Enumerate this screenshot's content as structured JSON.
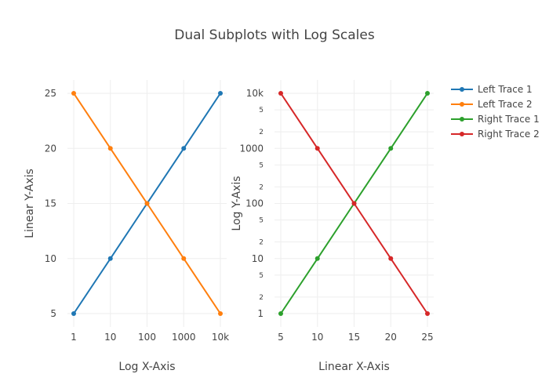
{
  "chart_data": {
    "title": "Dual Subplots with Log Scales",
    "legend_position": "top-right",
    "grid": true,
    "legend": [
      {
        "name": "Left Trace 1",
        "color": "#1f77b4"
      },
      {
        "name": "Left Trace 2",
        "color": "#ff7f0e"
      },
      {
        "name": "Right Trace 1",
        "color": "#2ca02c"
      },
      {
        "name": "Right Trace 2",
        "color": "#d62728"
      }
    ],
    "subplots": [
      {
        "type": "line",
        "xlabel": "Log X-Axis",
        "ylabel": "Linear Y-Axis",
        "xscale": "log",
        "yscale": "linear",
        "xlim": [
          1,
          10000
        ],
        "ylim": [
          5,
          25
        ],
        "xticks": [
          {
            "value": 1,
            "label": "1"
          },
          {
            "value": 10,
            "label": "10"
          },
          {
            "value": 100,
            "label": "100"
          },
          {
            "value": 1000,
            "label": "1000"
          },
          {
            "value": 10000,
            "label": "10k"
          }
        ],
        "yticks": [
          {
            "value": 5,
            "label": "5"
          },
          {
            "value": 10,
            "label": "10"
          },
          {
            "value": 15,
            "label": "15"
          },
          {
            "value": 20,
            "label": "20"
          },
          {
            "value": 25,
            "label": "25"
          }
        ],
        "series": [
          {
            "name": "Left Trace 1",
            "color": "#1f77b4",
            "x": [
              1,
              10,
              100,
              1000,
              10000
            ],
            "y": [
              5,
              10,
              15,
              20,
              25
            ]
          },
          {
            "name": "Left Trace 2",
            "color": "#ff7f0e",
            "x": [
              1,
              10,
              100,
              1000,
              10000
            ],
            "y": [
              25,
              20,
              15,
              10,
              5
            ]
          }
        ]
      },
      {
        "type": "line",
        "xlabel": "Linear X-Axis",
        "ylabel": "Log Y-Axis",
        "xscale": "linear",
        "yscale": "log",
        "xlim": [
          5,
          25
        ],
        "ylim": [
          1,
          10000
        ],
        "xticks": [
          {
            "value": 5,
            "label": "5"
          },
          {
            "value": 10,
            "label": "10"
          },
          {
            "value": 15,
            "label": "15"
          },
          {
            "value": 20,
            "label": "20"
          },
          {
            "value": 25,
            "label": "25"
          }
        ],
        "yticks": [
          {
            "value": 1,
            "label": "1"
          },
          {
            "value": 10,
            "label": "10"
          },
          {
            "value": 100,
            "label": "100"
          },
          {
            "value": 1000,
            "label": "1000"
          },
          {
            "value": 10000,
            "label": "10k"
          }
        ],
        "yminor_ticks": [
          {
            "value": 2,
            "label": "2"
          },
          {
            "value": 5,
            "label": "5"
          },
          {
            "value": 20,
            "label": "2"
          },
          {
            "value": 50,
            "label": "5"
          },
          {
            "value": 200,
            "label": "2"
          },
          {
            "value": 500,
            "label": "5"
          },
          {
            "value": 2000,
            "label": "2"
          },
          {
            "value": 5000,
            "label": "5"
          }
        ],
        "series": [
          {
            "name": "Right Trace 1",
            "color": "#2ca02c",
            "x": [
              5,
              10,
              15,
              20,
              25
            ],
            "y": [
              1,
              10,
              100,
              1000,
              10000
            ]
          },
          {
            "name": "Right Trace 2",
            "color": "#d62728",
            "x": [
              5,
              10,
              15,
              20,
              25
            ],
            "y": [
              10000,
              1000,
              100,
              10,
              1
            ]
          }
        ]
      }
    ]
  }
}
